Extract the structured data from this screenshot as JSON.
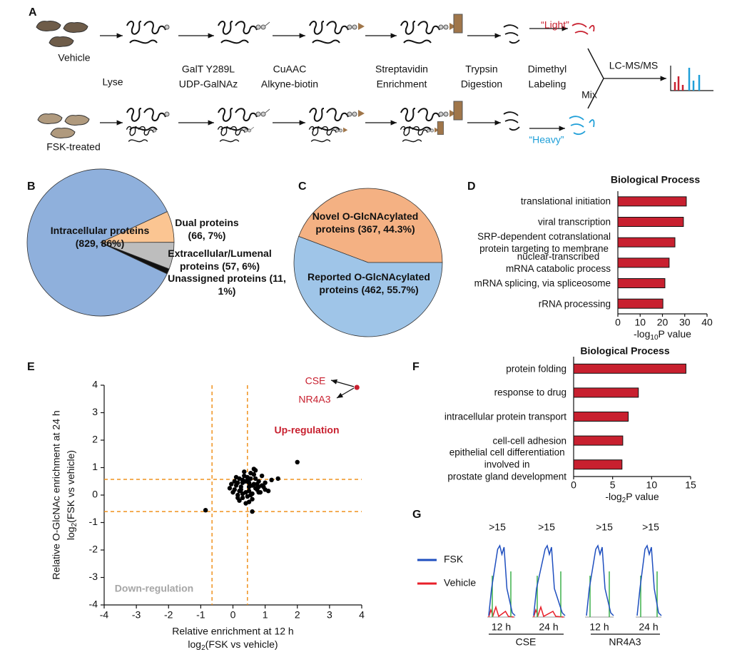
{
  "panel_labels": [
    "A",
    "B",
    "C",
    "D",
    "E",
    "F",
    "G"
  ],
  "diagram": {
    "vehicle": "Vehicle",
    "fsk": "FSK-treated",
    "steps": [
      [
        "Lyse"
      ],
      [
        "GalT Y289L",
        "UDP-GalNAz"
      ],
      [
        "CuAAC",
        "Alkyne-biotin"
      ],
      [
        "Streptavidin",
        "Enrichment"
      ],
      [
        "Trypsin",
        "Digestion"
      ],
      [
        "Dimethyl",
        "Labeling"
      ]
    ],
    "light": "“Light”",
    "light_color": "#c8202f",
    "heavy": "“Heavy”",
    "heavy_color": "#1f9fd8",
    "mix": "Mix",
    "lcms": "LC-MS/MS"
  },
  "chart_data": [
    {
      "type": "pie",
      "categories": [
        "Intracellular proteins",
        "Dual proteins",
        "Extracellular/Lumenal proteins",
        "Unassigned proteins"
      ],
      "values": [
        829,
        66,
        57,
        11
      ],
      "value_labels": [
        "(829, 86%)",
        "(66, 7%)",
        "(57, 6%)",
        "(11, 1%)"
      ],
      "colors": [
        "#8fb0dc",
        "#fbc592",
        "#bdbdbd",
        "#111111"
      ]
    },
    {
      "type": "pie",
      "categories": [
        "Novel O-GlcNAcylated proteins",
        "Reported O-GlcNAcylated proteins"
      ],
      "values": [
        367,
        462
      ],
      "value_labels": [
        "(367, 44.3%)",
        "(462, 55.7%)"
      ],
      "colors": [
        "#f4b183",
        "#9fc5e8"
      ]
    },
    {
      "type": "hbar",
      "title": "Biological Process",
      "categories": [
        "translational initiation",
        "viral transcription",
        "SRP-dependent cotranslational\nprotein targeting to membrane",
        "nuclear-transcribed\nmRNA catabolic process",
        "mRNA splicing, via spliceosome",
        "rRNA processing"
      ],
      "values": [
        30.7,
        29.4,
        25.6,
        23,
        21.1,
        20.2
      ],
      "color": "#c8202f",
      "xlim": [
        0,
        40
      ],
      "xticks": [
        0,
        10,
        20,
        30,
        40
      ],
      "xlabel": [
        "-log",
        "10",
        "P value"
      ]
    },
    {
      "type": "scatter",
      "xlim": [
        -4,
        4
      ],
      "ylim": [
        -4,
        4
      ],
      "xticks": [
        -4,
        -3,
        -2,
        -1,
        0,
        1,
        2,
        3,
        4
      ],
      "yticks": [
        -4,
        -3,
        -2,
        -1,
        0,
        1,
        2,
        3,
        4
      ],
      "xlabel": "Relative enrichment at 12 h",
      "xlabel_sub": [
        "log",
        "2",
        "(FSK vs vehicle)"
      ],
      "ylabel": "Relative O-GlcNAc enrichment at 24 h",
      "ylabel_sub": [
        "log",
        "2",
        "(FSK vs vehicle)"
      ],
      "series": [
        {
          "color": "#000000",
          "x": [
            -0.85,
            -0.1,
            0.05,
            0.0,
            0.1,
            0.15,
            0.2,
            0.25,
            0.3,
            0.35,
            0.4,
            0.45,
            0.5,
            0.55,
            0.6,
            0.65,
            0.7,
            0.75,
            0.8,
            0.9,
            1.0,
            1.1,
            1.2,
            1.4,
            2.0,
            0.2,
            0.3,
            0.4,
            0.5,
            0.6,
            0.7,
            0.8,
            0.35,
            0.45,
            0.55,
            0.65,
            0.25,
            0.15,
            0.05,
            0.5,
            0.6,
            0.7,
            0.4,
            0.3,
            0.2,
            0.9,
            1.0,
            0.75,
            0.85,
            0.45,
            0.55,
            -0.05,
            0.1,
            0.6,
            0.8,
            0.3,
            0.5,
            0.15,
            0.65,
            0.95
          ],
          "values": [
            -0.55,
            0.25,
            0.5,
            0.1,
            0.35,
            0.0,
            0.6,
            0.2,
            0.45,
            0.7,
            0.1,
            0.55,
            0.3,
            0.8,
            0.05,
            0.4,
            0.6,
            0.2,
            0.5,
            0.35,
            0.45,
            0.15,
            0.55,
            0.6,
            1.2,
            -0.2,
            -0.1,
            -0.3,
            -0.25,
            -0.15,
            0.9,
            0.1,
            0.85,
            0.65,
            0.0,
            0.75,
            0.3,
            0.45,
            0.2,
            0.45,
            0.35,
            0.25,
            0.5,
            0.05,
            0.15,
            0.7,
            0.2,
            0.4,
            0.1,
            -0.05,
            0.6,
            0.4,
            0.65,
            -0.6,
            0.3,
            0.55,
            0.15,
            -0.1,
            0.95,
            0.3
          ]
        },
        {
          "color": "#c8202f",
          "x": [
            3.85
          ],
          "values": [
            3.92
          ]
        }
      ],
      "reference_lines": {
        "x": [
          -0.65,
          0.45
        ],
        "y": [
          0.57,
          -0.6
        ],
        "color": "#f0921e"
      },
      "annotations": [
        {
          "text": "CSE",
          "color": "#c8202f"
        },
        {
          "text": "NR4A3",
          "color": "#c8202f"
        },
        {
          "text": "Up-regulation",
          "color": "#c8202f"
        },
        {
          "text": "Down-regulation",
          "color": "#a6a6a6"
        }
      ]
    },
    {
      "type": "hbar",
      "title": "Biological Process",
      "categories": [
        "protein folding",
        "response to drug",
        "intracellular protein transport",
        "cell-cell adhesion",
        "epithelial cell differentiation\ninvolved in\nprostate gland development"
      ],
      "values": [
        14.4,
        8.3,
        7.0,
        6.3,
        6.2
      ],
      "color": "#c8202f",
      "xlim": [
        0,
        15
      ],
      "xticks": [
        0,
        5,
        10,
        15
      ],
      "xlabel": [
        "-log",
        "2",
        "P value"
      ]
    }
  ],
  "panel_g": {
    "peak_labels": [
      ">15",
      ">15",
      ">15",
      ">15"
    ],
    "legend": [
      {
        "name": "FSK",
        "color": "#1f4fbf"
      },
      {
        "name": "Vehicle",
        "color": "#e8202a"
      }
    ],
    "times": [
      "12 h",
      "24 h",
      "12 h",
      "24 h"
    ],
    "groups": [
      "CSE",
      "NR4A3"
    ]
  }
}
